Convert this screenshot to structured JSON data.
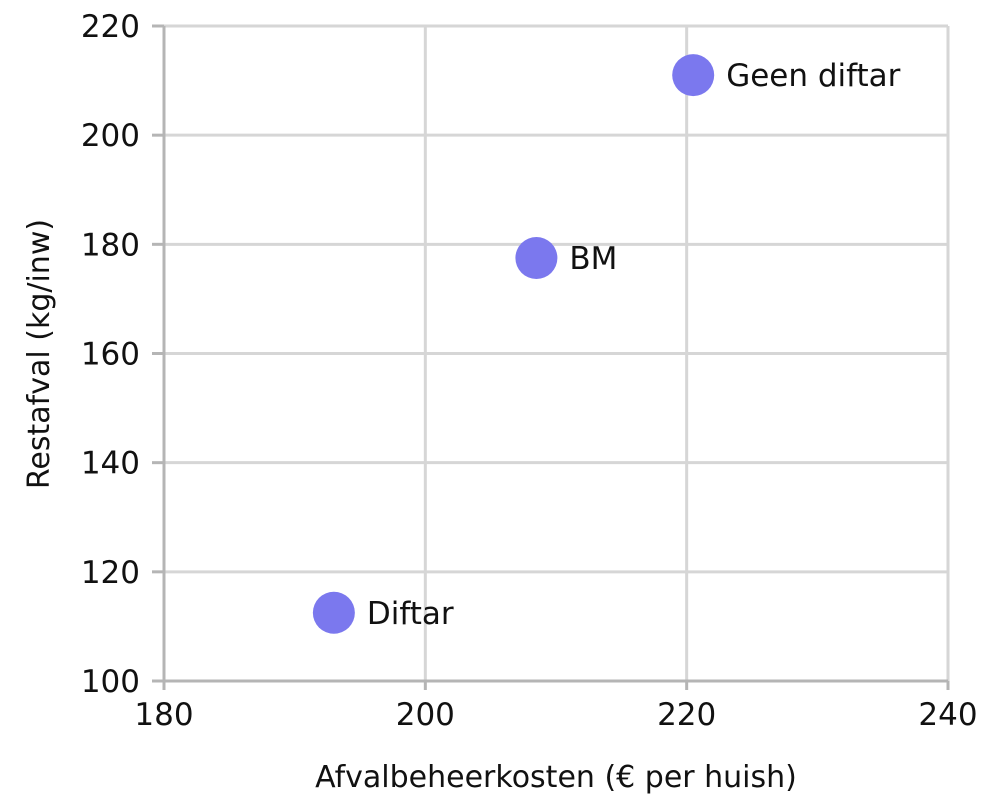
{
  "chart_data": {
    "type": "scatter",
    "xlabel": "Afvalbeheerkosten (€ per huish)",
    "ylabel": "Restafval (kg/inw)",
    "xlim": [
      180,
      240
    ],
    "ylim": [
      100,
      220
    ],
    "xticks": [
      180,
      200,
      220,
      240
    ],
    "yticks": [
      100,
      120,
      140,
      160,
      180,
      200,
      220
    ],
    "grid": true,
    "points": [
      {
        "label": "Geen diftar",
        "x": 220.5,
        "y": 211
      },
      {
        "label": "BM",
        "x": 208.5,
        "y": 177.5
      },
      {
        "label": "Diftar",
        "x": 193,
        "y": 112.5
      }
    ],
    "colors": {
      "point": "#7b78ee"
    }
  }
}
